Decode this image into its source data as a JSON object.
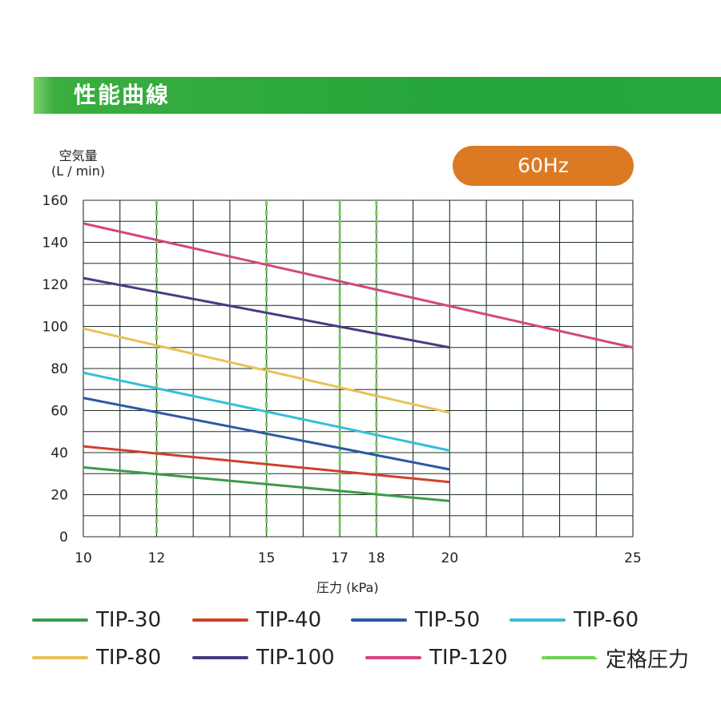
{
  "header": {
    "title": "性能曲線"
  },
  "badge": {
    "label": "60Hz"
  },
  "chart_data": {
    "type": "line",
    "title": "",
    "ylabel_line1": "空気量",
    "ylabel_line2": "(L / min)",
    "xlabel": "圧力 (kPa)",
    "xlim": [
      10,
      25
    ],
    "ylim": [
      0,
      160
    ],
    "x_ticks": [
      10,
      12,
      15,
      17,
      18,
      20,
      25
    ],
    "y_ticks": [
      0,
      20,
      40,
      60,
      80,
      100,
      120,
      140,
      160
    ],
    "grid": true,
    "rated_pressure_lines": [
      12,
      15,
      17,
      18
    ],
    "series": [
      {
        "name": "TIP-30",
        "color": "#3c9a4b",
        "x": [
          10,
          20
        ],
        "y": [
          33,
          17
        ]
      },
      {
        "name": "TIP-40",
        "color": "#d0402c",
        "x": [
          10,
          20
        ],
        "y": [
          43,
          26
        ]
      },
      {
        "name": "TIP-50",
        "color": "#2a5aa6",
        "x": [
          10,
          20
        ],
        "y": [
          66,
          32
        ]
      },
      {
        "name": "TIP-60",
        "color": "#35bfd8",
        "x": [
          10,
          20
        ],
        "y": [
          78,
          41
        ]
      },
      {
        "name": "TIP-80",
        "color": "#e8c25a",
        "x": [
          10,
          20
        ],
        "y": [
          99,
          59
        ]
      },
      {
        "name": "TIP-100",
        "color": "#4a3a82",
        "x": [
          10,
          20
        ],
        "y": [
          123,
          90
        ]
      },
      {
        "name": "TIP-120",
        "color": "#d2477f",
        "x": [
          10,
          25
        ],
        "y": [
          149,
          90
        ]
      }
    ],
    "legend": [
      {
        "label": "TIP-30",
        "color": "#3c9a4b",
        "style": "solid"
      },
      {
        "label": "TIP-40",
        "color": "#d0402c",
        "style": "solid"
      },
      {
        "label": "TIP-50",
        "color": "#2a5aa6",
        "style": "solid"
      },
      {
        "label": "TIP-60",
        "color": "#35bfd8",
        "style": "solid"
      },
      {
        "label": "TIP-80",
        "color": "#e8c25a",
        "style": "solid"
      },
      {
        "label": "TIP-100",
        "color": "#4a3a82",
        "style": "solid"
      },
      {
        "label": "TIP-120",
        "color": "#d2477f",
        "style": "solid"
      },
      {
        "label": "定格圧力",
        "color": "#6fd14e",
        "style": "dashed"
      }
    ]
  }
}
